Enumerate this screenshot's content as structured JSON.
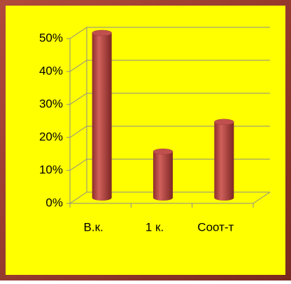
{
  "chart_data": {
    "type": "cylinder",
    "categories": [
      "В.к.",
      "1 к.",
      "Соот-т"
    ],
    "values": [
      50,
      14,
      23
    ],
    "color": "#c0504d",
    "ylim": [
      0,
      50
    ],
    "yticks": [
      {
        "value": 0,
        "label": "0%"
      },
      {
        "value": 10,
        "label": "10%"
      },
      {
        "value": 20,
        "label": "20%"
      },
      {
        "value": 30,
        "label": "30%"
      },
      {
        "value": 40,
        "label": "40%"
      },
      {
        "value": 50,
        "label": "50%"
      }
    ],
    "grid": true
  }
}
